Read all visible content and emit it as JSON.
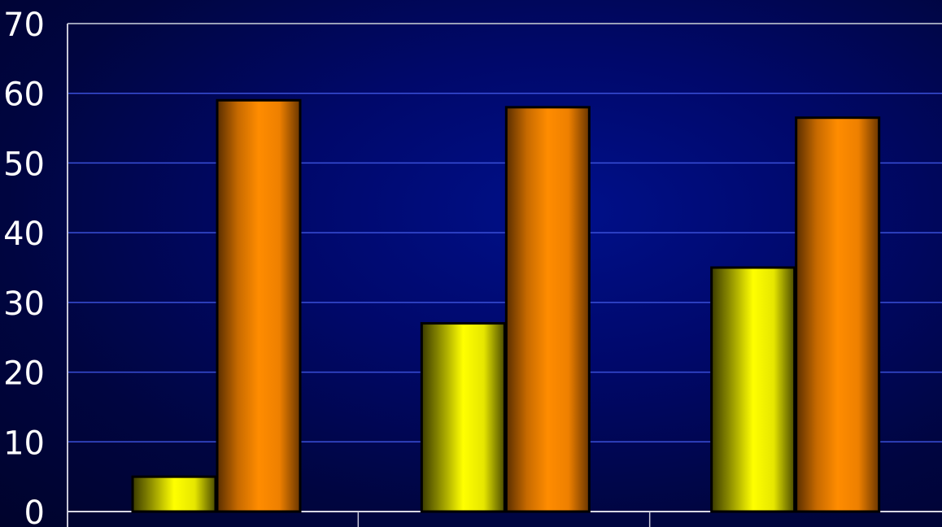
{
  "chart_data": {
    "type": "bar",
    "categories": [
      "",
      "",
      ""
    ],
    "series": [
      {
        "values": [
          5,
          27,
          35
        ],
        "color": "#ffff00"
      },
      {
        "values": [
          59,
          58,
          56.5
        ],
        "color": "#ff8c00"
      }
    ],
    "ylim": [
      0,
      70
    ],
    "yticks": [
      "0",
      "10",
      "20",
      "30",
      "40",
      "50",
      "60",
      "70"
    ],
    "grid": true,
    "legend": false
  }
}
